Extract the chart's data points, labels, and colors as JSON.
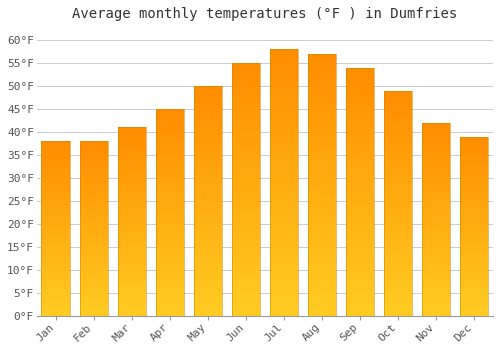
{
  "title": "Average monthly temperatures (°F ) in Dumfries",
  "months": [
    "Jan",
    "Feb",
    "Mar",
    "Apr",
    "May",
    "Jun",
    "Jul",
    "Aug",
    "Sep",
    "Oct",
    "Nov",
    "Dec"
  ],
  "values": [
    38,
    38,
    41,
    45,
    50,
    55,
    58,
    57,
    54,
    49,
    42,
    39
  ],
  "ylim": [
    0,
    63
  ],
  "yticks": [
    0,
    5,
    10,
    15,
    20,
    25,
    30,
    35,
    40,
    45,
    50,
    55,
    60
  ],
  "ytick_labels": [
    "0°F",
    "5°F",
    "10°F",
    "15°F",
    "20°F",
    "25°F",
    "30°F",
    "35°F",
    "40°F",
    "45°F",
    "50°F",
    "55°F",
    "60°F"
  ],
  "bar_color_bottom": "#FFCC22",
  "bar_color_top": "#FF8C00",
  "bar_edge_color": "#CC8800",
  "background_color": "#FFFFFF",
  "grid_color": "#CCCCCC",
  "title_fontsize": 10,
  "tick_fontsize": 8,
  "bar_width": 0.75
}
